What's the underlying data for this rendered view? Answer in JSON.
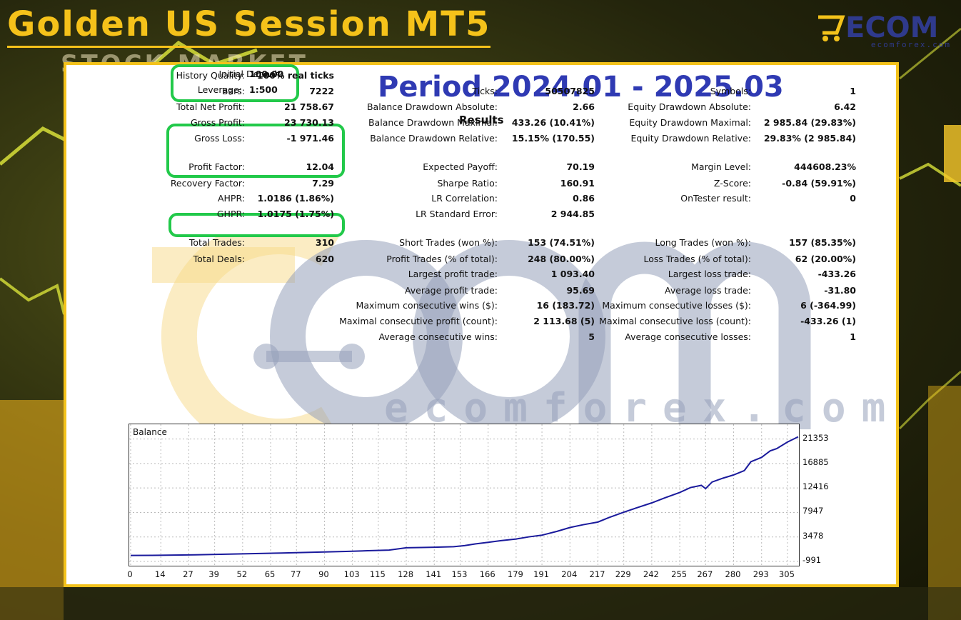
{
  "header": {
    "title": "Golden US Session MT5",
    "bg_text": "STOCK MARKET"
  },
  "logo": {
    "text": "ECOM",
    "subtext": "ecomforex.com"
  },
  "watermark": {
    "text": "ecomforex.com"
  },
  "report": {
    "period": "Period 2024.01 - 2025.03",
    "results_title": "Results",
    "top": [
      {
        "label": "Initial Deposit:",
        "value": "100.00"
      },
      {
        "label": "Leverage:",
        "value": "1:500"
      }
    ],
    "col1": [
      {
        "label": "History Quality:",
        "value": "100% real ticks"
      },
      {
        "label": "Bars:",
        "value": "7222"
      },
      {
        "label": "Total Net Profit:",
        "value": "21 758.67"
      },
      {
        "label": "Gross Profit:",
        "value": "23 730.13"
      },
      {
        "label": "Gross Loss:",
        "value": "-1 971.46"
      },
      {
        "label": "Profit Factor:",
        "value": "12.04"
      },
      {
        "label": "Recovery Factor:",
        "value": "7.29"
      },
      {
        "label": "AHPR:",
        "value": "1.0186 (1.86%)"
      },
      {
        "label": "GHPR:",
        "value": "1.0175 (1.75%)"
      },
      {
        "label": "Total Trades:",
        "value": "310"
      },
      {
        "label": "Total Deals:",
        "value": "620"
      }
    ],
    "col2": [
      {
        "label": "Ticks:",
        "value": "50507825"
      },
      {
        "label": "Balance Drawdown Absolute:",
        "value": "2.66"
      },
      {
        "label": "Balance Drawdown Maximal:",
        "value": "433.26 (10.41%)"
      },
      {
        "label": "Balance Drawdown Relative:",
        "value": "15.15% (170.55)"
      },
      {
        "label": "Expected Payoff:",
        "value": "70.19"
      },
      {
        "label": "Sharpe Ratio:",
        "value": "160.91"
      },
      {
        "label": "LR Correlation:",
        "value": "0.86"
      },
      {
        "label": "LR Standard Error:",
        "value": "2 944.85"
      },
      {
        "label": "Short Trades (won %):",
        "value": "153 (74.51%)"
      },
      {
        "label": "Profit Trades (% of total):",
        "value": "248 (80.00%)"
      },
      {
        "label": "Largest profit trade:",
        "value": "1 093.40"
      },
      {
        "label": "Average profit trade:",
        "value": "95.69"
      },
      {
        "label": "Maximum consecutive wins ($):",
        "value": "16 (183.72)"
      },
      {
        "label": "Maximal consecutive profit (count):",
        "value": "2 113.68 (5)"
      },
      {
        "label": "Average consecutive wins:",
        "value": "5"
      }
    ],
    "col3": [
      {
        "label": "Symbols:",
        "value": "1"
      },
      {
        "label": "Equity Drawdown Absolute:",
        "value": "6.42"
      },
      {
        "label": "Equity Drawdown Maximal:",
        "value": "2 985.84 (29.83%)"
      },
      {
        "label": "Equity Drawdown Relative:",
        "value": "29.83% (2 985.84)"
      },
      {
        "label": "Margin Level:",
        "value": "444608.23%"
      },
      {
        "label": "Z-Score:",
        "value": "-0.84 (59.91%)"
      },
      {
        "label": "OnTester result:",
        "value": "0"
      },
      {
        "label": "Long Trades (won %):",
        "value": "157 (85.35%)"
      },
      {
        "label": "Loss Trades (% of total):",
        "value": "62 (20.00%)"
      },
      {
        "label": "Largest loss trade:",
        "value": "-433.26"
      },
      {
        "label": "Average loss trade:",
        "value": "-31.80"
      },
      {
        "label": "Maximum consecutive losses ($):",
        "value": "6 (-364.99)"
      },
      {
        "label": "Maximal consecutive loss (count):",
        "value": "-433.26 (1)"
      },
      {
        "label": "Average consecutive losses:",
        "value": "1"
      }
    ]
  },
  "colors": {
    "accent": "#f3c21b",
    "highlight": "#22c94a",
    "period": "#2f3ab3",
    "line": "#1a1a9c"
  },
  "chart_data": {
    "type": "line",
    "title": "Balance",
    "xlabel": "",
    "ylabel": "",
    "x_ticks": [
      "0",
      "14",
      "27",
      "39",
      "52",
      "65",
      "77",
      "90",
      "103",
      "115",
      "128",
      "141",
      "153",
      "166",
      "179",
      "191",
      "204",
      "217",
      "229",
      "242",
      "255",
      "267",
      "280",
      "293",
      "305"
    ],
    "y_ticks": [
      "21353",
      "16885",
      "12416",
      "7947",
      "3478",
      "-991"
    ],
    "xlim": [
      0,
      310
    ],
    "ylim": [
      -991,
      23000
    ],
    "grid": true,
    "series": [
      {
        "x": [
          0,
          10,
          20,
          30,
          40,
          50,
          60,
          70,
          80,
          90,
          100,
          110,
          120,
          128,
          135,
          141,
          150,
          155,
          160,
          166,
          172,
          179,
          185,
          191,
          198,
          204,
          210,
          217,
          222,
          229,
          235,
          242,
          248,
          255,
          260,
          265,
          267,
          270,
          275,
          280,
          285,
          288,
          293,
          297,
          300,
          305,
          310
        ],
        "values": [
          100,
          120,
          160,
          220,
          300,
          380,
          460,
          540,
          640,
          740,
          840,
          960,
          1080,
          1500,
          1550,
          1600,
          1700,
          1900,
          2200,
          2500,
          2800,
          3100,
          3500,
          3800,
          4500,
          5200,
          5700,
          6200,
          7000,
          8000,
          8800,
          9700,
          10600,
          11600,
          12500,
          12900,
          12300,
          13500,
          14200,
          14800,
          15600,
          17200,
          18000,
          19200,
          19600,
          20800,
          21758
        ]
      }
    ]
  }
}
